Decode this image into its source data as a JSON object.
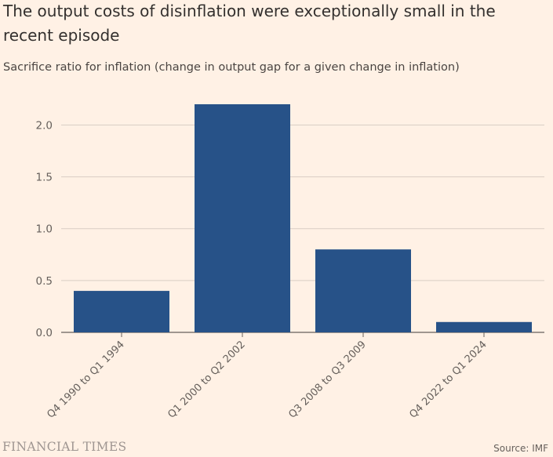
{
  "chart_data": {
    "type": "bar",
    "title": "The output costs of disinflation were exceptionally small in the recent episode",
    "subtitle": "Sacrifice ratio for inflation (change in output gap for a given change in inflation)",
    "categories": [
      "Q4 1990 to Q1 1994",
      "Q1 2000 to Q2 2002",
      "Q3 2008 to Q3 2009",
      "Q4 2022 to Q1 2024"
    ],
    "values": [
      0.4,
      2.2,
      0.8,
      0.1
    ],
    "yticks": [
      0.0,
      0.5,
      1.0,
      1.5,
      2.0
    ],
    "ytick_labels": [
      "0.0",
      "0.5",
      "1.0",
      "1.5",
      "2.0"
    ],
    "ylim": [
      0,
      2.2
    ],
    "xlabel": "",
    "ylabel": "",
    "grid": true,
    "bar_color": "#275288"
  },
  "footer": {
    "brand": "FINANCIAL TIMES",
    "source": "Source: IMF"
  }
}
